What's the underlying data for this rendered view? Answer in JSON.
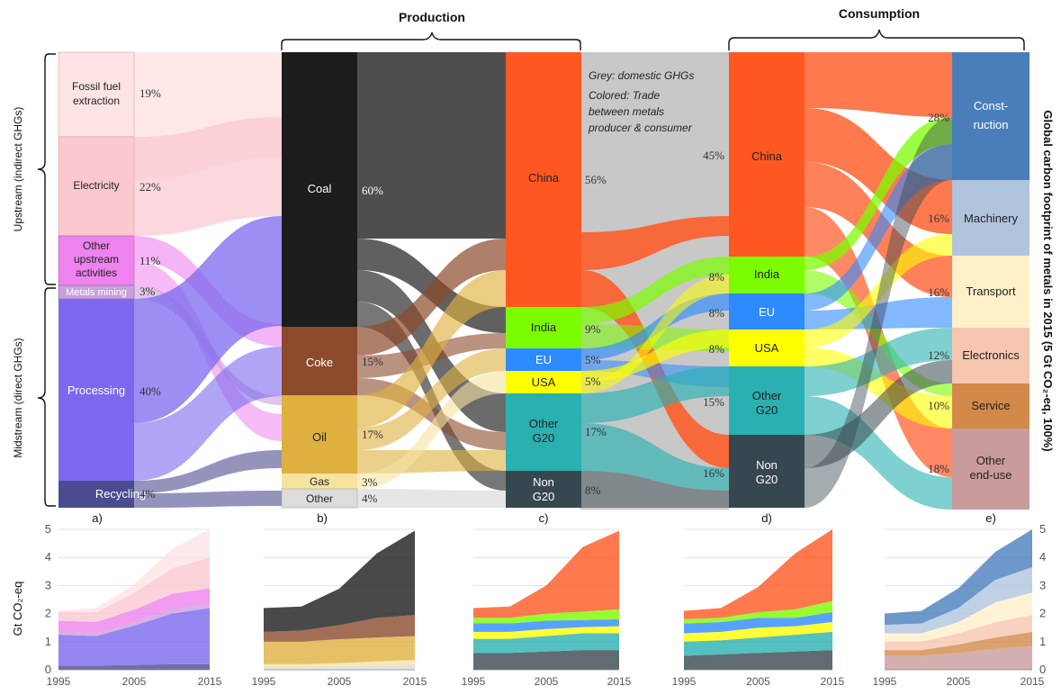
{
  "headers": {
    "production": "Production",
    "consumption": "Consumption"
  },
  "side_labels": {
    "upstream": "Upstream (indirect GHGs)",
    "midstream": "Midstream (direct GHGs)"
  },
  "right_title": "Global carbon footprint of metals in 2015 (5 Gt CO₂-eq, 100%)",
  "note": {
    "line1": "Grey: domestic GHGs",
    "line2": "Colored: Trade",
    "line3": "between metals",
    "line4": "producer & consumer"
  },
  "panel_letters": [
    "a)",
    "b)",
    "c)",
    "d)",
    "e)"
  ],
  "colors": {
    "fossil": "#fde3e3",
    "electricity": "#fbc8d0",
    "other_upstream": "#ee82ee",
    "metals_mining": "#c9a0dc",
    "processing": "#7b68ee",
    "recycling": "#4b4b8f",
    "coal": "#1c1c1c",
    "coke": "#8b4a2b",
    "oil": "#deb040",
    "gas": "#f5e3a0",
    "other": "#dcdcdc",
    "china": "#ff5722",
    "india": "#7cfc00",
    "eu": "#2e8bff",
    "usa": "#ffff00",
    "other_g20": "#2ab0b0",
    "non_g20": "#37474f",
    "construction": "#4a7ebb",
    "machinery": "#b0c4de",
    "transport": "#fff0c8",
    "electronics": "#f7c6b0",
    "service": "#d2894a",
    "other_end_use": "#c99b9b",
    "domestic_grey": "#c8c8c8"
  },
  "col_a": [
    {
      "label": "Fossil fuel extraction",
      "pct": "19%"
    },
    {
      "label": "Electricity",
      "pct": "22%"
    },
    {
      "label": "Other upstream activities",
      "pct": "11%"
    },
    {
      "label": "Metals mining",
      "pct": "3%"
    },
    {
      "label": "Processing",
      "pct": "40%"
    },
    {
      "label": "Recycling",
      "pct": "4%"
    }
  ],
  "col_b": [
    {
      "label": "Coal",
      "pct": "60%"
    },
    {
      "label": "Coke",
      "pct": "15%"
    },
    {
      "label": "Oil",
      "pct": "17%"
    },
    {
      "label": "Gas",
      "pct": "3%"
    },
    {
      "label": "Other",
      "pct": "4%"
    }
  ],
  "col_c": [
    {
      "label": "China",
      "pct": "56%"
    },
    {
      "label": "India",
      "pct": "9%"
    },
    {
      "label": "EU",
      "pct": "5%"
    },
    {
      "label": "USA",
      "pct": "5%"
    },
    {
      "label": "Other G20",
      "pct": "17%"
    },
    {
      "label": "Non G20",
      "pct": "8%"
    }
  ],
  "col_d": [
    {
      "label": "China",
      "pct": "45%"
    },
    {
      "label": "India",
      "pct": "8%"
    },
    {
      "label": "EU",
      "pct": "8%"
    },
    {
      "label": "USA",
      "pct": "8%"
    },
    {
      "label": "Other G20",
      "pct": "15%"
    },
    {
      "label": "Non G20",
      "pct": "16%"
    }
  ],
  "col_e": [
    {
      "label": "Const-ruction",
      "pct": "28%"
    },
    {
      "label": "Machinery",
      "pct": "16%"
    },
    {
      "label": "Transport",
      "pct": "16%"
    },
    {
      "label": "Electronics",
      "pct": "12%"
    },
    {
      "label": "Service",
      "pct": "10%"
    },
    {
      "label": "Other end-use",
      "pct": "18%"
    }
  ],
  "mini_charts": {
    "ylabel": "Gt CO₂-eq",
    "y_ticks": [
      "0",
      "1",
      "2",
      "3",
      "4",
      "5"
    ],
    "x_ticks": [
      "1995",
      "2005",
      "2015"
    ],
    "years": [
      1995,
      2000,
      2005,
      2010,
      2015
    ],
    "series": {
      "a": [
        {
          "name": "Recycling",
          "color": "#4b4b8f",
          "values": [
            0.15,
            0.15,
            0.17,
            0.2,
            0.2
          ]
        },
        {
          "name": "Processing",
          "color": "#7b68ee",
          "values": [
            1.1,
            1.05,
            1.4,
            1.8,
            2.0
          ]
        },
        {
          "name": "Metals mining",
          "color": "#c9a0dc",
          "values": [
            0.1,
            0.1,
            0.12,
            0.15,
            0.15
          ]
        },
        {
          "name": "Other upstream activities",
          "color": "#ee82ee",
          "values": [
            0.4,
            0.4,
            0.45,
            0.55,
            0.55
          ]
        },
        {
          "name": "Electricity",
          "color": "#fbc8d0",
          "values": [
            0.3,
            0.35,
            0.6,
            0.9,
            1.1
          ]
        },
        {
          "name": "Fossil fuel extraction",
          "color": "#fde3e3",
          "values": [
            0.05,
            0.15,
            0.3,
            0.7,
            1.0
          ]
        }
      ],
      "b": [
        {
          "name": "Other",
          "color": "#dcdcdc",
          "values": [
            0.1,
            0.1,
            0.12,
            0.15,
            0.2
          ]
        },
        {
          "name": "Gas",
          "color": "#f5e3a0",
          "values": [
            0.1,
            0.1,
            0.12,
            0.15,
            0.15
          ]
        },
        {
          "name": "Oil",
          "color": "#deb040",
          "values": [
            0.8,
            0.8,
            0.85,
            0.85,
            0.85
          ]
        },
        {
          "name": "Coke",
          "color": "#8b4a2b",
          "values": [
            0.35,
            0.4,
            0.5,
            0.7,
            0.75
          ]
        },
        {
          "name": "Coal",
          "color": "#1c1c1c",
          "values": [
            0.85,
            0.85,
            1.3,
            2.3,
            3.0
          ]
        }
      ],
      "c": [
        {
          "name": "Non G20",
          "color": "#37474f",
          "values": [
            0.6,
            0.6,
            0.65,
            0.7,
            0.7
          ]
        },
        {
          "name": "Other G20",
          "color": "#2ab0b0",
          "values": [
            0.5,
            0.5,
            0.55,
            0.6,
            0.6
          ]
        },
        {
          "name": "USA",
          "color": "#ffff00",
          "values": [
            0.25,
            0.25,
            0.25,
            0.22,
            0.25
          ]
        },
        {
          "name": "EU",
          "color": "#2e8bff",
          "values": [
            0.3,
            0.3,
            0.3,
            0.25,
            0.25
          ]
        },
        {
          "name": "India",
          "color": "#7cfc00",
          "values": [
            0.2,
            0.2,
            0.25,
            0.3,
            0.35
          ]
        },
        {
          "name": "China",
          "color": "#ff5722",
          "values": [
            0.35,
            0.4,
            1.0,
            2.3,
            2.8
          ]
        }
      ],
      "d": [
        {
          "name": "Non G20",
          "color": "#37474f",
          "values": [
            0.5,
            0.55,
            0.6,
            0.65,
            0.7
          ]
        },
        {
          "name": "Other G20",
          "color": "#2ab0b0",
          "values": [
            0.5,
            0.5,
            0.55,
            0.6,
            0.65
          ]
        },
        {
          "name": "USA",
          "color": "#ffff00",
          "values": [
            0.3,
            0.3,
            0.35,
            0.3,
            0.35
          ]
        },
        {
          "name": "EU",
          "color": "#2e8bff",
          "values": [
            0.35,
            0.35,
            0.35,
            0.3,
            0.35
          ]
        },
        {
          "name": "India",
          "color": "#7cfc00",
          "values": [
            0.15,
            0.15,
            0.2,
            0.3,
            0.4
          ]
        },
        {
          "name": "China",
          "color": "#ff5722",
          "values": [
            0.3,
            0.35,
            0.9,
            2.0,
            2.55
          ]
        }
      ],
      "e": [
        {
          "name": "Other end-use",
          "color": "#c99b9b",
          "values": [
            0.5,
            0.5,
            0.6,
            0.75,
            0.85
          ]
        },
        {
          "name": "Service",
          "color": "#d2894a",
          "values": [
            0.2,
            0.2,
            0.3,
            0.4,
            0.5
          ]
        },
        {
          "name": "Electronics",
          "color": "#f7c6b0",
          "values": [
            0.3,
            0.3,
            0.4,
            0.55,
            0.6
          ]
        },
        {
          "name": "Transport",
          "color": "#fff0c8",
          "values": [
            0.3,
            0.3,
            0.4,
            0.7,
            0.8
          ]
        },
        {
          "name": "Machinery",
          "color": "#b0c4de",
          "values": [
            0.3,
            0.35,
            0.5,
            0.8,
            0.9
          ]
        },
        {
          "name": "Construction",
          "color": "#4a7ebb",
          "values": [
            0.4,
            0.45,
            0.7,
            1.0,
            1.35
          ]
        }
      ]
    }
  }
}
